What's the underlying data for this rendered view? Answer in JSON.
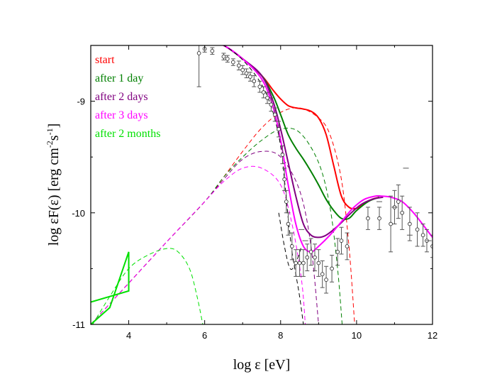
{
  "chart_data": {
    "type": "line",
    "xlabel": "log ε [eV]",
    "ylabel_parts": {
      "base": "log εF(ε) [erg cm",
      "sup1": "-2",
      "mid": "s",
      "sup2": "-1",
      "end": "]"
    },
    "xlim": [
      3,
      12
    ],
    "ylim": [
      -11,
      -8.5
    ],
    "x_ticks": [
      4,
      6,
      8,
      10,
      12
    ],
    "y_ticks": [
      -11,
      -10,
      -9
    ],
    "x_tick_labels": [
      "4",
      "6",
      "8",
      "10",
      "12"
    ],
    "y_tick_labels": [
      "-11",
      "-10",
      "-9"
    ],
    "grid": false,
    "legend_position": "top-left",
    "legend": [
      {
        "label": "start",
        "color": "#ff0000"
      },
      {
        "label": "after 1 day",
        "color": "#008000"
      },
      {
        "label": "after 2 days",
        "color": "#800080"
      },
      {
        "label": "after 3 days",
        "color": "#ff00ff"
      },
      {
        "label": "after 2 months",
        "color": "#00e000"
      }
    ],
    "series": [
      {
        "name": "start",
        "style": "solid",
        "color": "#ff0000",
        "x": [
          6.1,
          6.5,
          7.0,
          7.5,
          7.8,
          8.0,
          8.2,
          8.4,
          8.6,
          8.8,
          9.0,
          9.2,
          9.4,
          9.6,
          9.8,
          10.0,
          10.2,
          10.4,
          10.6
        ],
        "y": [
          -8.47,
          -8.5,
          -8.62,
          -8.77,
          -8.9,
          -8.98,
          -9.04,
          -9.06,
          -9.07,
          -9.09,
          -9.15,
          -9.3,
          -9.58,
          -9.85,
          -9.95,
          -9.96,
          -9.92,
          -9.88,
          -9.86
        ]
      },
      {
        "name": "start",
        "style": "dashed",
        "color": "#ff0000",
        "x": [
          3.0,
          4,
          5,
          6,
          6.5,
          7,
          7.5,
          8,
          8.5,
          9,
          9.3,
          9.6,
          9.8,
          9.95
        ],
        "y": [
          -11.0,
          -10.63,
          -10.26,
          -9.9,
          -9.68,
          -9.45,
          -9.24,
          -9.1,
          -9.06,
          -9.15,
          -9.3,
          -9.7,
          -10.3,
          -11.0
        ]
      },
      {
        "name": "after 1 day",
        "style": "solid",
        "color": "#008000",
        "x": [
          6.1,
          6.5,
          7.0,
          7.5,
          7.8,
          8.0,
          8.2,
          8.4,
          8.6,
          8.8,
          9.0,
          9.2,
          9.4,
          9.6,
          9.8,
          10.0,
          10.3,
          10.6
        ],
        "y": [
          -8.47,
          -8.5,
          -8.62,
          -8.77,
          -8.95,
          -9.12,
          -9.3,
          -9.42,
          -9.52,
          -9.63,
          -9.75,
          -9.88,
          -9.98,
          -10.05,
          -10.05,
          -9.98,
          -9.9,
          -9.86
        ]
      },
      {
        "name": "after 1 day",
        "style": "dashed",
        "color": "#008000",
        "x": [
          3.0,
          4,
          5,
          6,
          6.5,
          7,
          7.5,
          8,
          8.5,
          9,
          9.3,
          9.5,
          9.62
        ],
        "y": [
          -11.0,
          -10.63,
          -10.26,
          -9.9,
          -9.68,
          -9.5,
          -9.35,
          -9.25,
          -9.28,
          -9.55,
          -9.95,
          -10.5,
          -11.0
        ]
      },
      {
        "name": "after 2 days",
        "style": "solid",
        "color": "#800080",
        "x": [
          6.1,
          6.5,
          7.0,
          7.5,
          7.8,
          8.0,
          8.2,
          8.4,
          8.6,
          8.8,
          9.0,
          9.2,
          9.5,
          9.8,
          10.1,
          10.4,
          10.7
        ],
        "y": [
          -8.47,
          -8.5,
          -8.62,
          -8.77,
          -9.0,
          -9.25,
          -9.55,
          -9.85,
          -10.1,
          -10.2,
          -10.22,
          -10.2,
          -10.12,
          -10.02,
          -9.93,
          -9.88,
          -9.86
        ]
      },
      {
        "name": "after 2 days",
        "style": "dashed",
        "color": "#800080",
        "x": [
          3.0,
          4,
          5,
          6,
          6.5,
          7,
          7.5,
          8,
          8.5,
          8.8,
          9.0
        ],
        "y": [
          -11.0,
          -10.63,
          -10.26,
          -9.9,
          -9.7,
          -9.52,
          -9.45,
          -9.5,
          -9.8,
          -10.3,
          -11.0
        ]
      },
      {
        "name": "after 3 days",
        "style": "solid",
        "color": "#ff00ff",
        "x": [
          6.1,
          6.5,
          7.0,
          7.5,
          7.8,
          8.0,
          8.2,
          8.4,
          8.6,
          8.8,
          9.0,
          9.3,
          9.6,
          9.9,
          10.2,
          10.5,
          10.65,
          10.9,
          11.2,
          11.5,
          11.8,
          12.0
        ],
        "y": [
          -8.47,
          -8.5,
          -8.62,
          -8.8,
          -9.05,
          -9.35,
          -9.75,
          -10.1,
          -10.3,
          -10.35,
          -10.3,
          -10.2,
          -10.08,
          -9.96,
          -9.88,
          -9.85,
          -9.85,
          -9.86,
          -9.9,
          -10.0,
          -10.13,
          -10.22
        ]
      },
      {
        "name": "after 3 days",
        "style": "dashed",
        "color": "#ff00ff",
        "x": [
          3.0,
          4,
          5,
          6,
          6.5,
          7,
          7.5,
          8,
          8.3,
          8.55,
          8.65
        ],
        "y": [
          -11.0,
          -10.63,
          -10.26,
          -9.9,
          -9.72,
          -9.6,
          -9.6,
          -9.75,
          -10.1,
          -10.6,
          -11.0
        ]
      },
      {
        "name": "after 2 months",
        "style": "dashed",
        "color": "#00e000",
        "x": [
          3.05,
          3.5,
          4,
          4.5,
          5.0,
          5.3,
          5.6,
          5.8,
          5.95
        ],
        "y": [
          -11.0,
          -10.75,
          -10.5,
          -10.38,
          -10.32,
          -10.35,
          -10.5,
          -10.75,
          -11.0
        ]
      },
      {
        "name": "black model",
        "style": "dashed",
        "color": "#000000",
        "x": [
          6.1,
          6.5,
          7.0,
          7.5,
          7.8,
          8.0,
          8.1,
          8.2,
          8.3,
          8.4,
          8.5,
          8.6
        ],
        "y": [
          -8.47,
          -8.5,
          -8.63,
          -8.85,
          -9.1,
          -9.4,
          -9.7,
          -10.05,
          -10.35,
          -10.55,
          -10.75,
          -11.0
        ]
      },
      {
        "name": "black model",
        "style": "dashed",
        "color": "#000000",
        "x": [
          7.95,
          8.1,
          8.25,
          8.4,
          8.55
        ],
        "y": [
          -10.0,
          -10.3,
          -10.5,
          -10.45,
          -10.3
        ]
      }
    ],
    "green_bowtie": {
      "color": "#00e000",
      "x": [
        3.0,
        4.0,
        4.0,
        3.5,
        3.0
      ],
      "y": [
        -10.8,
        -10.7,
        -10.35,
        -10.85,
        -11.0
      ]
    },
    "data_points": [
      {
        "x": 5.85,
        "y": -8.57,
        "err": 0.3
      },
      {
        "x": 6.0,
        "y": -8.53,
        "err": 0.03
      },
      {
        "x": 6.2,
        "y": -8.55,
        "err": 0.03
      },
      {
        "x": 6.5,
        "y": -8.6,
        "err": 0.03
      },
      {
        "x": 6.6,
        "y": -8.62,
        "err": 0.03
      },
      {
        "x": 6.75,
        "y": -8.65,
        "err": 0.03
      },
      {
        "x": 6.9,
        "y": -8.68,
        "err": 0.04
      },
      {
        "x": 7.0,
        "y": -8.72,
        "err": 0.04
      },
      {
        "x": 7.1,
        "y": -8.75,
        "err": 0.04
      },
      {
        "x": 7.2,
        "y": -8.78,
        "err": 0.04
      },
      {
        "x": 7.3,
        "y": -8.82,
        "err": 0.05
      },
      {
        "x": 7.45,
        "y": -8.87,
        "err": 0.05
      },
      {
        "x": 7.55,
        "y": -8.92,
        "err": 0.05
      },
      {
        "x": 7.65,
        "y": -8.97,
        "err": 0.05
      },
      {
        "x": 7.75,
        "y": -9.03,
        "err": 0.06
      },
      {
        "x": 7.85,
        "y": -9.12,
        "err": 0.06
      },
      {
        "x": 7.95,
        "y": -9.25,
        "err": 0.07
      },
      {
        "x": 8.05,
        "y": -9.48,
        "err": 0.08
      },
      {
        "x": 8.1,
        "y": -9.7,
        "err": 0.1
      },
      {
        "x": 8.15,
        "y": -9.9,
        "err": 0.1
      },
      {
        "x": 8.2,
        "y": -10.1,
        "err": 0.1
      },
      {
        "x": 8.3,
        "y": -10.3,
        "err": 0.12
      },
      {
        "x": 8.4,
        "y": -10.45,
        "err": 0.12
      },
      {
        "x": 8.5,
        "y": -10.45,
        "err": 0.12
      },
      {
        "x": 8.6,
        "y": -10.45,
        "err": 0.12
      },
      {
        "x": 8.7,
        "y": -10.4,
        "err": 0.12
      },
      {
        "x": 8.8,
        "y": -10.35,
        "err": 0.12
      },
      {
        "x": 8.9,
        "y": -10.4,
        "err": 0.12
      },
      {
        "x": 9.0,
        "y": -10.45,
        "err": 0.12
      },
      {
        "x": 9.1,
        "y": -10.55,
        "err": 0.12
      },
      {
        "x": 9.2,
        "y": -10.6,
        "err": 0.12
      },
      {
        "x": 9.35,
        "y": -10.5,
        "err": 0.12
      },
      {
        "x": 9.5,
        "y": -10.35,
        "err": 0.12
      },
      {
        "x": 9.6,
        "y": -10.25,
        "err": 0.12
      },
      {
        "x": 9.75,
        "y": -10.3,
        "err": 0.12
      },
      {
        "x": 10.3,
        "y": -10.05,
        "err": 0.1
      },
      {
        "x": 10.6,
        "y": -10.05,
        "err": 0.1
      },
      {
        "x": 10.9,
        "y": -10.1,
        "err": 0.25
      },
      {
        "x": 11.0,
        "y": -9.95,
        "err": 0.15
      },
      {
        "x": 11.1,
        "y": -9.9,
        "err": 0.15
      },
      {
        "x": 11.2,
        "y": -10.0,
        "err": 0.15
      },
      {
        "x": 11.4,
        "y": -10.1,
        "err": 0.15
      },
      {
        "x": 11.6,
        "y": -10.15,
        "err": 0.15
      },
      {
        "x": 11.75,
        "y": -10.2,
        "err": 0.1
      },
      {
        "x": 11.85,
        "y": -10.25,
        "err": 0.1
      },
      {
        "x": 12.0,
        "y": -10.3,
        "err": 0.1
      }
    ],
    "dashes": [
      {
        "x": 10.6,
        "y": -9.9
      },
      {
        "x": 11.0,
        "y": -9.95
      },
      {
        "x": 11.3,
        "y": -9.6
      },
      {
        "x": 11.4,
        "y": -10.2
      },
      {
        "x": 11.9,
        "y": -10.25
      },
      {
        "x": 8.55,
        "y": -10.15
      },
      {
        "x": 8.65,
        "y": -10.25
      }
    ]
  }
}
